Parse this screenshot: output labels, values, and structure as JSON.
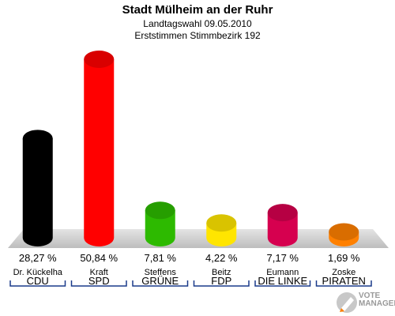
{
  "header": {
    "title": "Stadt Mülheim an der Ruhr",
    "subtitle1": "Landtagswahl 09.05.2010",
    "subtitle2": "Erststimmen Stimmbezirk 192"
  },
  "logo": {
    "line1": "VOTE",
    "line2": "MANAGER",
    "icon": "pencil-icon"
  },
  "chart_data": {
    "type": "bar",
    "title": "Stadt Mülheim an der Ruhr",
    "categories": [
      "CDU",
      "SPD",
      "GRÜNE",
      "FDP",
      "DIE LINKE",
      "PIRATEN"
    ],
    "candidates": [
      "Dr. Kückelha",
      "Kraft",
      "Steffens",
      "Beitz",
      "Eumann",
      "Zoske"
    ],
    "values": [
      28.27,
      50.84,
      7.81,
      4.22,
      7.17,
      1.69
    ],
    "value_labels": [
      "28,27 %",
      "50,84 %",
      "7,81 %",
      "4,22 %",
      "7,17 %",
      "1,69 %"
    ],
    "colors": [
      "#000000",
      "#ff0000",
      "#2dba00",
      "#ffe500",
      "#d6004f",
      "#ff8000"
    ],
    "ylim": [
      0,
      50.84
    ],
    "grid": false,
    "legend": "none"
  }
}
